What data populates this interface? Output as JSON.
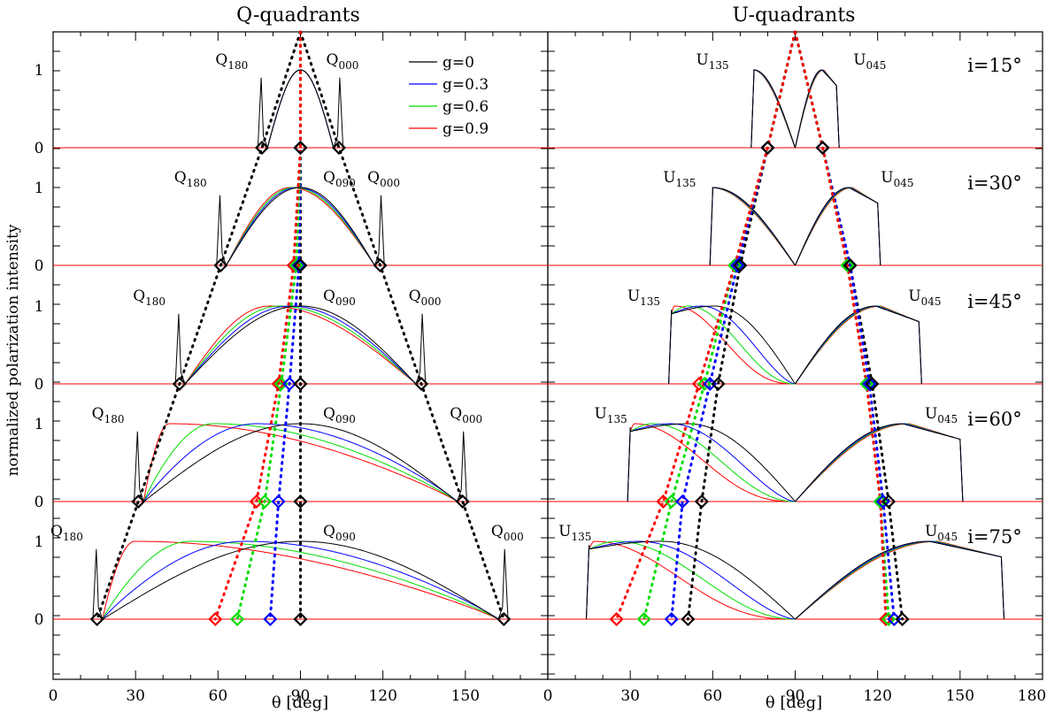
{
  "colors": {
    "g0": "#000000",
    "g1": "#0000ff",
    "g2": "#00dd00",
    "g3": "#ff0000"
  },
  "chart_data": {
    "type": "line",
    "ylabel": "normalized polarization intensity",
    "xlabel": "θ [deg]",
    "x_ticks": [
      "0",
      "30",
      "60",
      "90",
      "120",
      "150",
      "0",
      "30",
      "60",
      "90",
      "120",
      "150",
      "180"
    ],
    "panels": [
      {
        "title": "Q-quadrants",
        "xlim": [
          0,
          180
        ]
      },
      {
        "title": "U-quadrants",
        "xlim": [
          0,
          180
        ]
      }
    ],
    "legend": {
      "placement": "top-right of left panel",
      "entries": [
        "g=0",
        "g=0.3",
        "g=0.6",
        "g=0.9"
      ]
    },
    "inclinations": [
      "i=15°",
      "i=30°",
      "i=45°",
      "i=60°",
      "i=75°"
    ],
    "row_ytick_labels": [
      "0",
      "1"
    ],
    "peak_labels": {
      "Q180": [
        "Q",
        "180"
      ],
      "Q090": [
        "Q",
        "090"
      ],
      "Q000": [
        "Q",
        "000"
      ],
      "U135": [
        "U",
        "135"
      ],
      "U045": [
        "U",
        "045"
      ]
    },
    "rows": [
      {
        "inclination_deg": 15,
        "q_edges": [
          76,
          104
        ],
        "q_markers": [
          90,
          90,
          90,
          90
        ],
        "u_edges": [
          75,
          105
        ],
        "u_markers_left": [
          80,
          80,
          80,
          80
        ],
        "u_markers_right": [
          100,
          100,
          100,
          100
        ]
      },
      {
        "inclination_deg": 30,
        "q_edges": [
          61,
          119
        ],
        "q_markers": [
          90,
          89.5,
          88.5,
          87.5
        ],
        "u_edges": [
          60,
          120
        ],
        "u_markers_left": [
          70,
          69,
          68,
          68
        ],
        "u_markers_right": [
          110,
          110,
          109,
          109
        ]
      },
      {
        "inclination_deg": 45,
        "q_edges": [
          46,
          134
        ],
        "q_markers": [
          90,
          86,
          83,
          82
        ],
        "u_edges": [
          45,
          135
        ],
        "u_markers_left": [
          62,
          59,
          57,
          55
        ],
        "u_markers_right": [
          118,
          117,
          116,
          116
        ]
      },
      {
        "inclination_deg": 60,
        "q_edges": [
          31,
          149
        ],
        "q_markers": [
          90,
          82,
          77,
          74
        ],
        "u_edges": [
          30,
          150
        ],
        "u_markers_left": [
          56,
          49,
          45,
          42
        ],
        "u_markers_right": [
          124,
          122,
          121,
          121
        ]
      },
      {
        "inclination_deg": 75,
        "q_edges": [
          16,
          164
        ],
        "q_markers": [
          90,
          79,
          67,
          59
        ],
        "u_edges": [
          15,
          165
        ],
        "u_markers_left": [
          51,
          45,
          35,
          25
        ],
        "u_markers_right": [
          129,
          126,
          124,
          123
        ]
      }
    ]
  }
}
